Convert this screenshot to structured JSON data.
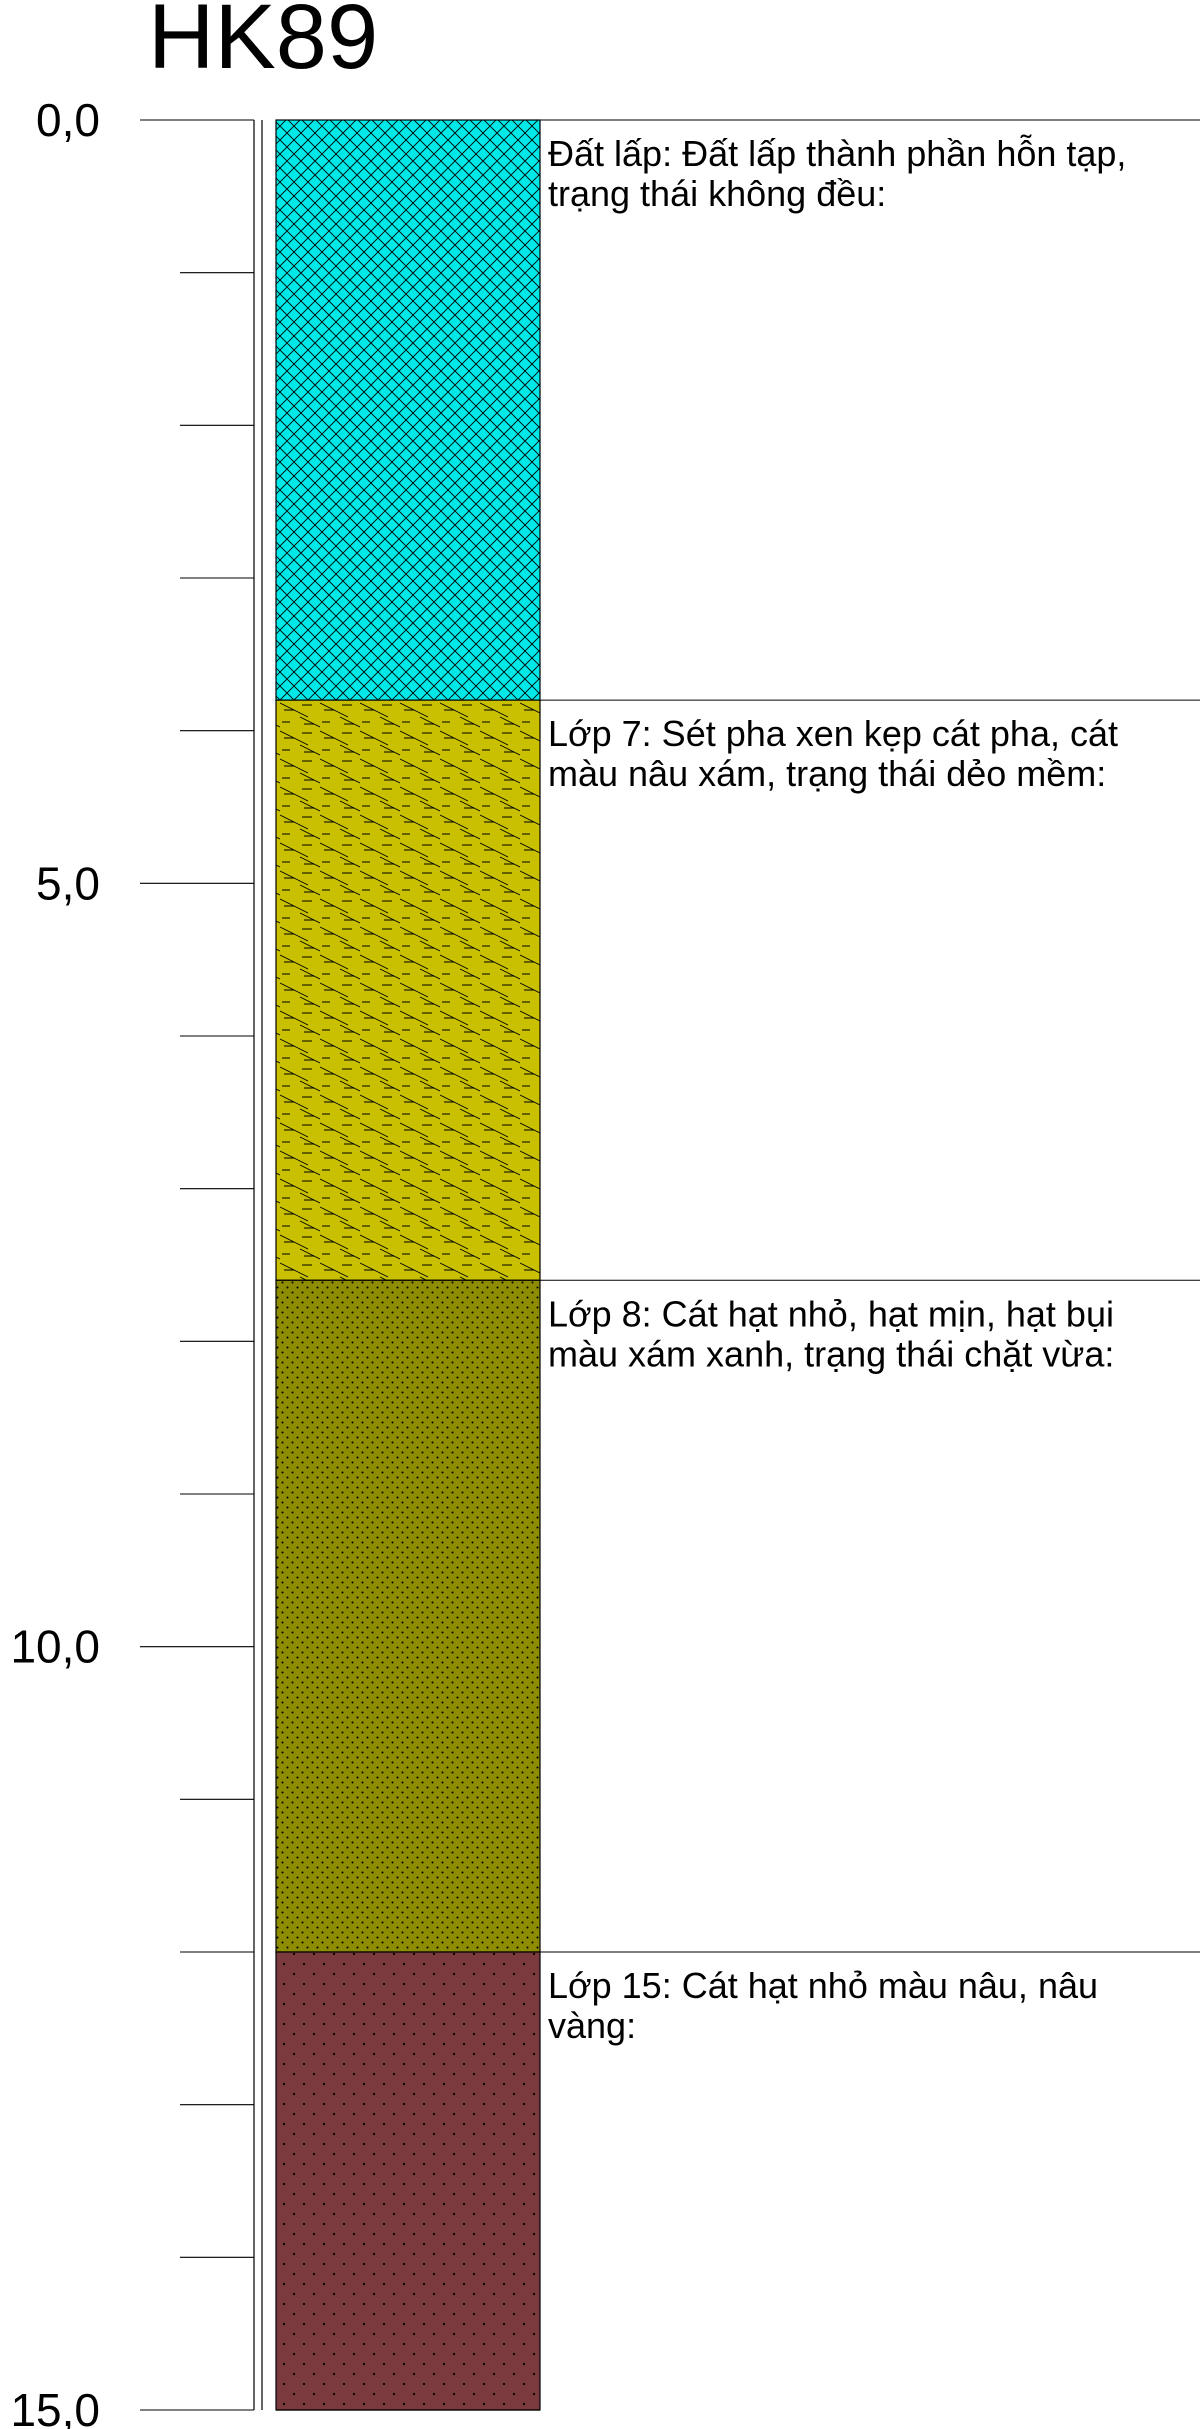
{
  "title": "HK89",
  "depth_axis": {
    "min": 0,
    "max": 15,
    "minor_step": 1,
    "major_labels": [
      {
        "depth": 0,
        "text": "0,0"
      },
      {
        "depth": 5,
        "text": "5,0"
      },
      {
        "depth": 10,
        "text": "10,0"
      },
      {
        "depth": 15,
        "text": "15,0"
      }
    ]
  },
  "layers": [
    {
      "id": "dat-lap",
      "top": 0,
      "bottom": 3.8,
      "pattern": "crosshatch",
      "fill_color": "#00e8e8",
      "line_color": "#000000",
      "description": [
        "Đất lấp: Đất lấp thành phần hỗn tạp,",
        "trạng thái không đều:"
      ]
    },
    {
      "id": "lop-7",
      "top": 3.8,
      "bottom": 7.6,
      "pattern": "clay-sand",
      "fill_color": "#c8c000",
      "line_color": "#000000",
      "description": [
        "Lớp 7: Sét pha xen kẹp cát pha, cát",
        "màu nâu xám, trạng thái dẻo mềm:"
      ]
    },
    {
      "id": "lop-8",
      "top": 7.6,
      "bottom": 12.0,
      "pattern": "fine-dots",
      "fill_color": "#8e8c00",
      "line_color": "#000000",
      "description": [
        "Lớp 8: Cát hạt nhỏ, hạt mịn, hạt bụi",
        "màu xám xanh, trạng thái chặt vừa:"
      ]
    },
    {
      "id": "lop-15",
      "top": 12.0,
      "bottom": 15.0,
      "pattern": "sparse-dots",
      "fill_color": "#7a3a3e",
      "line_color": "#000000",
      "description": [
        "Lớp 15: Cát hạt nhỏ màu nâu, nâu",
        "vàng:"
      ]
    }
  ]
}
